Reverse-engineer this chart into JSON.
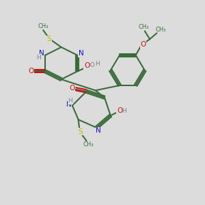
{
  "background_color": "#dcdcdc",
  "bond_color": "#3a6b3a",
  "n_color": "#1010cc",
  "o_color": "#cc1010",
  "s_color": "#bbbb00",
  "h_color": "#808080",
  "line_width": 1.5,
  "figsize": [
    3.0,
    3.0
  ],
  "dpi": 100,
  "xlim": [
    0,
    10
  ],
  "ylim": [
    0,
    10
  ]
}
